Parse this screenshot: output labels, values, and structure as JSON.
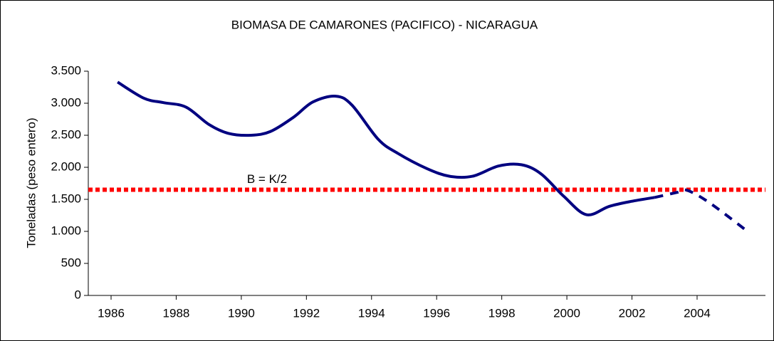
{
  "chart_data": {
    "type": "line",
    "title": "BIOMASA DE CAMARONES (PACIFICO) - NICARAGUA",
    "y_label": "Toneladas (peso entero)",
    "xlim": [
      1985.3,
      2006.1
    ],
    "xticks": [
      1986,
      1988,
      1990,
      1992,
      1994,
      1996,
      1998,
      2000,
      2002,
      2004
    ],
    "ylim": [
      0,
      3500
    ],
    "yticks": [
      0,
      500,
      {
        "value": 1000,
        "label": "1.000"
      },
      {
        "value": 1500,
        "label": "1.500"
      },
      {
        "value": 2000,
        "label": "2.000"
      },
      {
        "value": 2500,
        "label": "2.500"
      },
      {
        "value": 3000,
        "label": "3.000"
      },
      {
        "value": 3500,
        "label": "3.500"
      }
    ],
    "series": [
      {
        "color": "#000080",
        "dash": false,
        "x": [
          1986.2,
          1987.0,
          1987.6,
          1988.3,
          1989.0,
          1989.6,
          1990.3,
          1990.9,
          1991.6,
          1992.2,
          1992.9,
          1993.4,
          1994.2,
          1994.8,
          1995.7,
          1996.4,
          1997.1,
          1997.9,
          1998.6,
          1999.2,
          1999.9,
          2000.6,
          2001.3,
          2002.0,
          2002.7
        ],
        "values": [
          3330,
          3080,
          3010,
          2940,
          2670,
          2530,
          2500,
          2560,
          2780,
          3020,
          3110,
          2970,
          2440,
          2220,
          1980,
          1860,
          1860,
          2020,
          2040,
          1900,
          1550,
          1260,
          1390,
          1470,
          1530
        ]
      },
      {
        "color": "#000080",
        "dash": true,
        "x": [
          2002.7,
          2003.4,
          2003.7,
          2004.4,
          2005.6
        ],
        "values": [
          1530,
          1610,
          1640,
          1440,
          980
        ]
      }
    ],
    "reference_line": {
      "value": 1650,
      "color": "#ff0000",
      "label": "B = K/2"
    }
  }
}
